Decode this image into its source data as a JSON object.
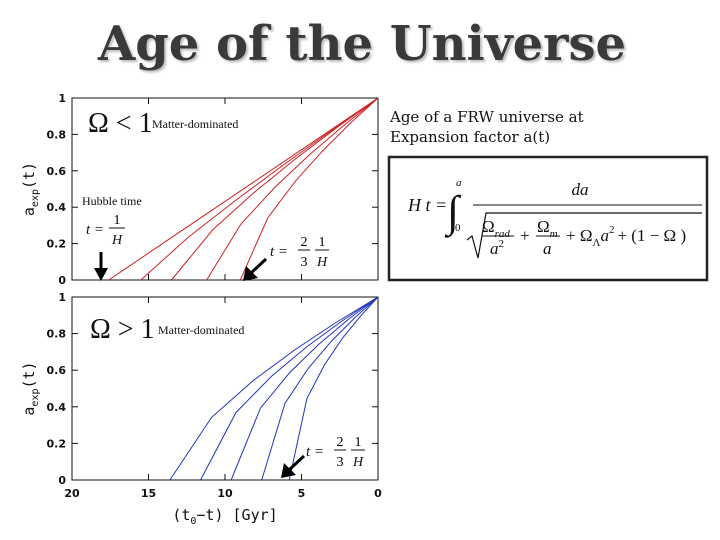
{
  "title": "Age of the Universe",
  "note": [
    "Age of a FRW universe at",
    "Expansion factor a(t)"
  ],
  "equation": {
    "lhs": "H t =",
    "upper": "a",
    "lower": "0",
    "numerator": "da",
    "omega_rad": "Ω",
    "rad_sub": "rad",
    "rad_den": "a",
    "rad_den_exp": "2",
    "plus1": "+",
    "omega_m": "Ω",
    "m_sub": "m",
    "m_den": "a",
    "plus2": "+ Ω",
    "lambda_sub": "Λ",
    "lambda_a": "a",
    "lambda_exp": "2",
    "tail": "+ (1 − Ω )"
  },
  "chart_data": [
    {
      "type": "line",
      "xlim": [
        20,
        0
      ],
      "xticks": [
        20,
        15,
        10,
        5,
        0
      ],
      "show_xtick_labels": false,
      "ylim": [
        0,
        1
      ],
      "yticks": [
        0,
        0.2,
        0.4,
        0.6,
        0.8,
        1
      ],
      "ylabel": {
        "base": "a",
        "sub": "exp",
        "rest": "(t)"
      },
      "annotations": {
        "omega": "Ω < 1",
        "regime": "Matter-dominated",
        "hubble": "Hubble time",
        "t1": {
          "lhs": "t =",
          "num": "1",
          "den": "H"
        },
        "t2": {
          "lhs": "t =",
          "n1": "2",
          "d1": "3",
          "n2": "1",
          "d2": "H"
        }
      },
      "series": [
        {
          "color": "#cc2222",
          "x": [
            17.6,
            14.08,
            10.56,
            7.04,
            3.52,
            0
          ],
          "values": [
            0,
            0.2,
            0.4,
            0.6,
            0.8,
            1
          ]
        },
        {
          "color": "#cc2222",
          "x": [
            15.5,
            12.4,
            9.3,
            6.2,
            3.1,
            0
          ],
          "values": [
            0,
            0.235,
            0.438,
            0.631,
            0.818,
            1
          ]
        },
        {
          "color": "#cc2222",
          "x": [
            13.5,
            10.8,
            8.1,
            5.4,
            2.7,
            0
          ],
          "values": [
            0,
            0.276,
            0.481,
            0.665,
            0.837,
            1
          ]
        },
        {
          "color": "#cc2222",
          "x": [
            11.2,
            8.96,
            6.72,
            4.48,
            2.24,
            0
          ],
          "values": [
            0,
            0.307,
            0.511,
            0.688,
            0.849,
            1
          ]
        },
        {
          "color": "#cc2222",
          "x": [
            9,
            7.2,
            5.4,
            3.6,
            1.8,
            0
          ],
          "values": [
            0,
            0.342,
            0.543,
            0.711,
            0.862,
            1
          ]
        }
      ]
    },
    {
      "type": "line",
      "xlim": [
        20,
        0
      ],
      "xticks": [
        20,
        15,
        10,
        5,
        0
      ],
      "show_xtick_labels": true,
      "ylim": [
        0,
        1
      ],
      "yticks": [
        0,
        0.2,
        0.4,
        0.6,
        0.8,
        1
      ],
      "ylabel": {
        "base": "a",
        "sub": "exp",
        "rest": "(t)"
      },
      "xlabel": {
        "base": "(t",
        "sub": "0",
        "rest": "−t)  [Gyr]"
      },
      "annotations": {
        "omega": "Ω > 1",
        "regime": "Matter-dominated",
        "t2": {
          "lhs": "t =",
          "n1": "2",
          "d1": "3",
          "n2": "1",
          "d2": "H"
        }
      },
      "series": [
        {
          "color": "#2233bb",
          "x": [
            13.6,
            10.88,
            8.16,
            5.44,
            2.72,
            0
          ],
          "values": [
            0,
            0.342,
            0.543,
            0.711,
            0.862,
            1
          ]
        },
        {
          "color": "#2233bb",
          "x": [
            11.6,
            9.28,
            6.96,
            4.64,
            2.32,
            0
          ],
          "values": [
            0,
            0.369,
            0.567,
            0.729,
            0.871,
            1
          ]
        },
        {
          "color": "#2233bb",
          "x": [
            9.6,
            7.68,
            5.76,
            3.84,
            1.92,
            0
          ],
          "values": [
            0,
            0.393,
            0.588,
            0.744,
            0.879,
            1
          ]
        },
        {
          "color": "#2233bb",
          "x": [
            7.6,
            6.08,
            4.56,
            3.04,
            1.52,
            0
          ],
          "values": [
            0,
            0.419,
            0.61,
            0.759,
            0.886,
            1
          ]
        },
        {
          "color": "#2233bb",
          "x": [
            5.8,
            4.64,
            3.48,
            2.32,
            1.16,
            0
          ],
          "values": [
            0,
            0.447,
            0.632,
            0.775,
            0.894,
            1
          ]
        }
      ]
    }
  ]
}
